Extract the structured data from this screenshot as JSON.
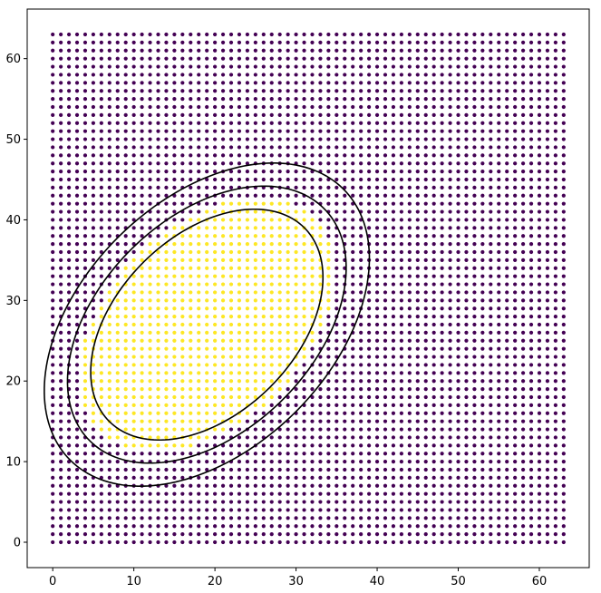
{
  "chart_data": {
    "type": "scatter",
    "title": "",
    "xlabel": "",
    "ylabel": "",
    "xlim": [
      -3.15,
      66.15
    ],
    "ylim": [
      -3.15,
      66.15
    ],
    "grid": false,
    "x_ticks": [
      0,
      10,
      20,
      30,
      40,
      50,
      60
    ],
    "y_ticks": [
      0,
      10,
      20,
      30,
      40,
      50,
      60
    ],
    "points": {
      "grid_min": 0,
      "grid_max": 63,
      "grid_step": 1,
      "colors": {
        "outside": "#440154",
        "inside": "#fde725"
      }
    },
    "ellipse_model": {
      "center": [
        19,
        27
      ],
      "rotation_deg": 45,
      "semi_axes": [
        17,
        11
      ],
      "inside_threshold": 1.1
    },
    "contours": [
      {
        "level": 1.0,
        "color": "#000000"
      },
      {
        "level": 1.2,
        "color": "#000000"
      },
      {
        "level": 1.4,
        "color": "#000000"
      }
    ]
  }
}
